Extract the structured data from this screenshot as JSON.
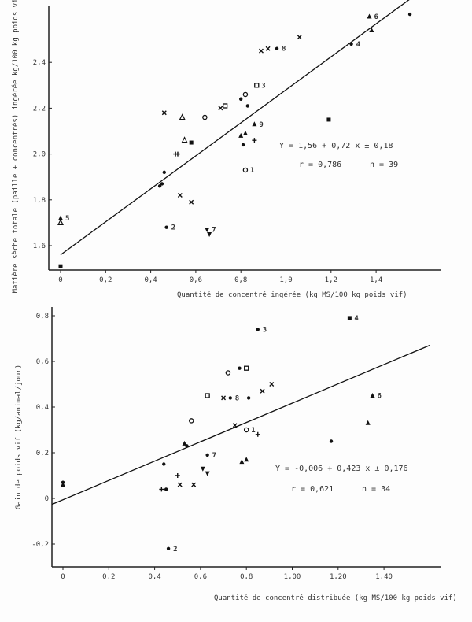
{
  "chart_data": [
    {
      "type": "scatter",
      "xlabel": "Quantité de concentré ingérée (kg MS/100 kg poids vif)",
      "ylabel": "Matière sèche totale (paille + concentrés) ingérée kg/100 kg poids vif.",
      "xticks": [
        "0",
        "0,2",
        "0,4",
        "0,6",
        "0,8",
        "1,0",
        "1,2",
        "1,4"
      ],
      "xtick_values": [
        0,
        0.2,
        0.4,
        0.6,
        0.8,
        1.0,
        1.2,
        1.4
      ],
      "yticks": [
        "1,6",
        "1,8",
        "2,0",
        "2,2",
        "2,4"
      ],
      "ytick_values": [
        1.6,
        1.8,
        2.0,
        2.2,
        2.4
      ],
      "xlim": [
        -0.05,
        1.6
      ],
      "ylim": [
        1.5,
        2.62
      ],
      "regression": {
        "intercept": 1.56,
        "slope": 0.72,
        "x_range": [
          0,
          1.55
        ]
      },
      "equation": "Y = 1,56 + 0,72 x ± 0,18",
      "stats": "r = 0,786",
      "n": "n = 39",
      "points": [
        {
          "x": 0,
          "y": 1.51,
          "m": "square"
        },
        {
          "x": 0,
          "y": 1.72,
          "m": "triangle",
          "label": "5"
        },
        {
          "x": 0,
          "y": 1.7,
          "m": "triangle-open"
        },
        {
          "x": 0.46,
          "y": 2.18,
          "m": "x"
        },
        {
          "x": 0.54,
          "y": 2.16,
          "m": "triangle-open"
        },
        {
          "x": 0.64,
          "y": 2.16,
          "m": "circle"
        },
        {
          "x": 0.71,
          "y": 2.2,
          "m": "x"
        },
        {
          "x": 0.73,
          "y": 2.21,
          "m": "square-open"
        },
        {
          "x": 0.8,
          "y": 2.24,
          "m": "dot"
        },
        {
          "x": 0.82,
          "y": 2.26,
          "m": "circle"
        },
        {
          "x": 0.83,
          "y": 2.21,
          "m": "dot"
        },
        {
          "x": 0.87,
          "y": 2.3,
          "m": "square-open",
          "label": "3"
        },
        {
          "x": 0.89,
          "y": 2.45,
          "m": "x"
        },
        {
          "x": 0.92,
          "y": 2.46,
          "m": "x"
        },
        {
          "x": 0.96,
          "y": 2.46,
          "m": "dot",
          "label": "8"
        },
        {
          "x": 1.06,
          "y": 2.51,
          "m": "x"
        },
        {
          "x": 1.29,
          "y": 2.48,
          "m": "dot",
          "label": "4"
        },
        {
          "x": 1.37,
          "y": 2.6,
          "m": "triangle",
          "label": "6"
        },
        {
          "x": 1.38,
          "y": 2.54,
          "m": "triangle"
        },
        {
          "x": 1.55,
          "y": 2.61,
          "m": "dot"
        },
        {
          "x": 1.19,
          "y": 2.15,
          "m": "square"
        },
        {
          "x": 0.86,
          "y": 2.13,
          "m": "triangle",
          "label": "9"
        },
        {
          "x": 0.8,
          "y": 2.08,
          "m": "triangle"
        },
        {
          "x": 0.82,
          "y": 2.09,
          "m": "triangle"
        },
        {
          "x": 0.81,
          "y": 2.04,
          "m": "dot"
        },
        {
          "x": 0.86,
          "y": 2.06,
          "m": "plus"
        },
        {
          "x": 0.82,
          "y": 1.93,
          "m": "circle",
          "label": "1"
        },
        {
          "x": 0.55,
          "y": 2.06,
          "m": "triangle-open"
        },
        {
          "x": 0.58,
          "y": 2.05,
          "m": "square"
        },
        {
          "x": 0.51,
          "y": 2.0,
          "m": "plus"
        },
        {
          "x": 0.52,
          "y": 2.0,
          "m": "plus"
        },
        {
          "x": 0.46,
          "y": 1.92,
          "m": "dot"
        },
        {
          "x": 0.44,
          "y": 1.86,
          "m": "dot"
        },
        {
          "x": 0.45,
          "y": 1.87,
          "m": "dot"
        },
        {
          "x": 0.53,
          "y": 1.82,
          "m": "x"
        },
        {
          "x": 0.58,
          "y": 1.79,
          "m": "x"
        },
        {
          "x": 0.47,
          "y": 1.68,
          "m": "dot",
          "label": "2"
        },
        {
          "x": 0.65,
          "y": 1.67,
          "m": "triangle-down",
          "label": "7"
        },
        {
          "x": 0.66,
          "y": 1.65,
          "m": "triangle-down"
        }
      ]
    },
    {
      "type": "scatter",
      "xlabel": "Quantité de concentré distribuée (kg MS/100 kg poids vif)",
      "ylabel": "Gain de poids vif (kg/animal/jour)",
      "xticks": [
        "0",
        "0,2",
        "0,4",
        "0,6",
        "0,8",
        "1,00",
        "1,20",
        "1,40"
      ],
      "xtick_values": [
        0,
        0.2,
        0.4,
        0.6,
        0.8,
        1.0,
        1.2,
        1.4
      ],
      "yticks": [
        "-0,2",
        "0",
        "0,2",
        "0,4",
        "0,6",
        "0,8"
      ],
      "ytick_values": [
        -0.2,
        0,
        0.2,
        0.4,
        0.6,
        0.8
      ],
      "xlim": [
        -0.05,
        1.6
      ],
      "ylim": [
        -0.3,
        0.86
      ],
      "regression": {
        "intercept": -0.006,
        "slope": 0.423,
        "x_range": [
          -0.05,
          1.6
        ]
      },
      "equation": "Y = -0,006 + 0,423 x ± 0,176",
      "stats": "r = 0,621",
      "n": "n = 34",
      "points": [
        {
          "x": 0,
          "y": 0.07,
          "m": "dot"
        },
        {
          "x": 0,
          "y": 0.06,
          "m": "triangle"
        },
        {
          "x": 0.46,
          "y": -0.22,
          "m": "dot",
          "label": "2"
        },
        {
          "x": 0.85,
          "y": 0.74,
          "m": "dot",
          "label": "3"
        },
        {
          "x": 1.25,
          "y": 0.79,
          "m": "square",
          "label": "4"
        },
        {
          "x": 0.72,
          "y": 0.55,
          "m": "circle"
        },
        {
          "x": 0.77,
          "y": 0.57,
          "m": "dot"
        },
        {
          "x": 0.8,
          "y": 0.57,
          "m": "square-open"
        },
        {
          "x": 0.63,
          "y": 0.45,
          "m": "square-open"
        },
        {
          "x": 0.7,
          "y": 0.44,
          "m": "x"
        },
        {
          "x": 0.73,
          "y": 0.44,
          "m": "dot",
          "label": "8"
        },
        {
          "x": 0.81,
          "y": 0.44,
          "m": "dot"
        },
        {
          "x": 0.87,
          "y": 0.47,
          "m": "x"
        },
        {
          "x": 0.91,
          "y": 0.5,
          "m": "x"
        },
        {
          "x": 1.35,
          "y": 0.45,
          "m": "triangle",
          "label": "6"
        },
        {
          "x": 1.33,
          "y": 0.33,
          "m": "triangle"
        },
        {
          "x": 1.17,
          "y": 0.25,
          "m": "dot"
        },
        {
          "x": 0.56,
          "y": 0.34,
          "m": "circle"
        },
        {
          "x": 0.75,
          "y": 0.32,
          "m": "x"
        },
        {
          "x": 0.8,
          "y": 0.3,
          "m": "circle",
          "label": "1"
        },
        {
          "x": 0.85,
          "y": 0.28,
          "m": "plus"
        },
        {
          "x": 0.53,
          "y": 0.24,
          "m": "triangle"
        },
        {
          "x": 0.54,
          "y": 0.23,
          "m": "dot"
        },
        {
          "x": 0.63,
          "y": 0.19,
          "m": "dot",
          "label": "7"
        },
        {
          "x": 0.78,
          "y": 0.16,
          "m": "triangle"
        },
        {
          "x": 0.8,
          "y": 0.17,
          "m": "triangle"
        },
        {
          "x": 0.44,
          "y": 0.15,
          "m": "dot"
        },
        {
          "x": 0.61,
          "y": 0.13,
          "m": "triangle-down"
        },
        {
          "x": 0.63,
          "y": 0.11,
          "m": "triangle-down"
        },
        {
          "x": 0.5,
          "y": 0.1,
          "m": "plus"
        },
        {
          "x": 0.51,
          "y": 0.06,
          "m": "x"
        },
        {
          "x": 0.57,
          "y": 0.06,
          "m": "x"
        },
        {
          "x": 0.43,
          "y": 0.04,
          "m": "plus"
        },
        {
          "x": 0.45,
          "y": 0.04,
          "m": "dot"
        }
      ]
    }
  ]
}
